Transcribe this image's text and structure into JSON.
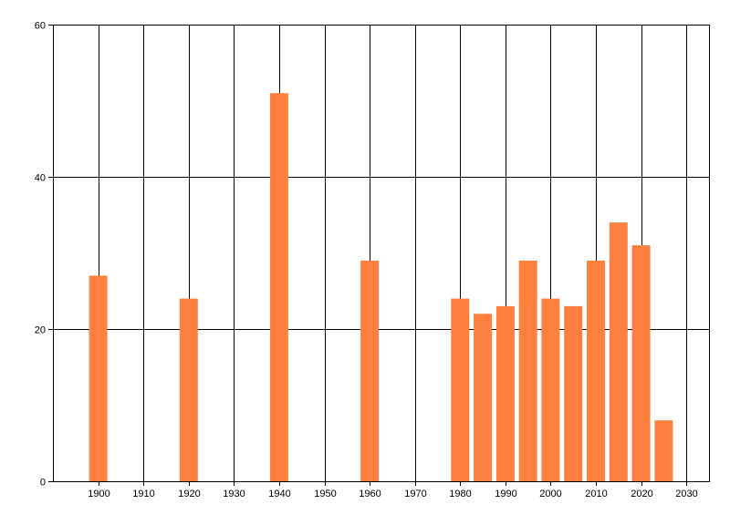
{
  "chart_data": {
    "type": "bar",
    "title": "",
    "xlabel": "",
    "ylabel": "",
    "x": [
      1900,
      1920,
      1940,
      1960,
      1980,
      1985,
      1990,
      1995,
      2000,
      2005,
      2010,
      2015,
      2020,
      2025
    ],
    "values": [
      27,
      24,
      51,
      29,
      24,
      22,
      23,
      29,
      24,
      23,
      29,
      34,
      31,
      8
    ],
    "xlim": [
      1890,
      2035
    ],
    "ylim": [
      0,
      60
    ],
    "xticks": [
      1900,
      1910,
      1920,
      1930,
      1940,
      1950,
      1960,
      1970,
      1980,
      1990,
      2000,
      2010,
      2020,
      2030
    ],
    "yticks": [
      0,
      20,
      40,
      60
    ],
    "grid": true,
    "legend": "none",
    "colors": {
      "bar": "#ff7f3f",
      "grid": "#000000",
      "axis": "#000000"
    }
  }
}
